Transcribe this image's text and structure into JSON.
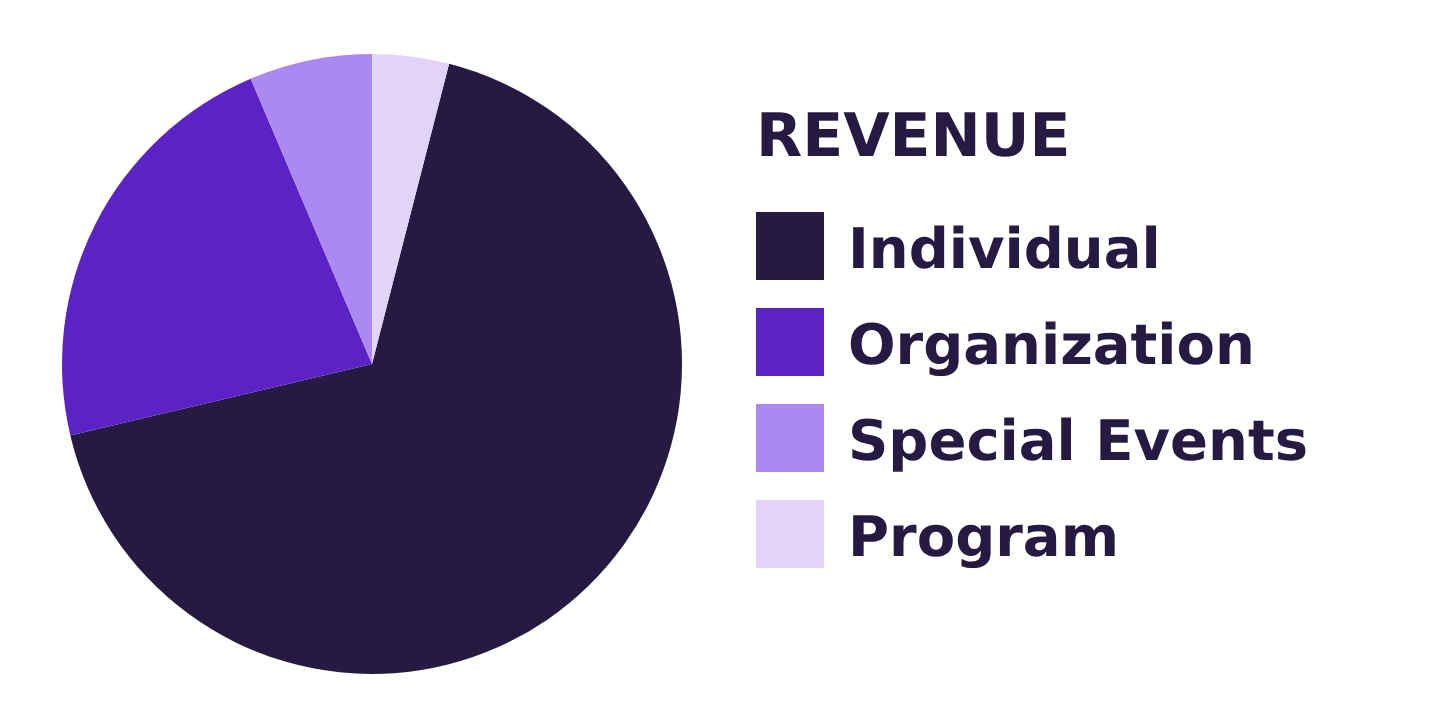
{
  "chart_data": {
    "type": "pie",
    "legend_title": "REVENUE",
    "legend": "right",
    "categories": [
      "Individual",
      "Organization",
      "Special Events",
      "Program"
    ],
    "values": [
      67.3,
      22.3,
      6.4,
      4.0
    ],
    "colors": [
      "#261a42",
      "#5b22c6",
      "#ac88f2",
      "#e1d4f8"
    ]
  }
}
